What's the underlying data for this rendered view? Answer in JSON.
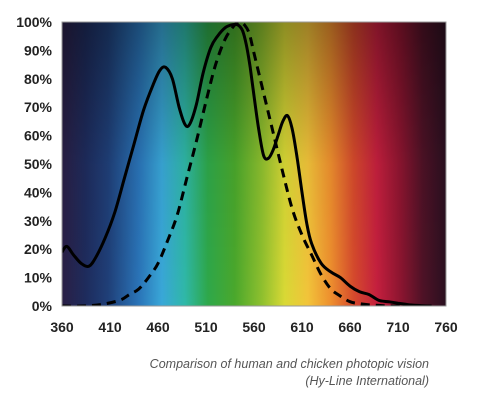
{
  "chart_data": {
    "type": "line",
    "title": "",
    "xlabel": "",
    "ylabel": "",
    "xlim": [
      360,
      760
    ],
    "ylim": [
      0,
      100
    ],
    "x_ticks": [
      "360",
      "410",
      "460",
      "510",
      "560",
      "610",
      "660",
      "710",
      "760"
    ],
    "y_ticks": [
      "0%",
      "10%",
      "20%",
      "30%",
      "40%",
      "50%",
      "60%",
      "70%",
      "80%",
      "90%",
      "100%"
    ],
    "grid": false,
    "legend": "none",
    "background": "visible-spectrum gradient",
    "series": [
      {
        "style": "solid",
        "color": "#000000",
        "x": [
          360,
          365,
          372,
          380,
          388,
          395,
          405,
          415,
          425,
          435,
          445,
          455,
          462,
          468,
          475,
          482,
          488,
          493,
          500,
          507,
          515,
          522,
          530,
          537,
          543,
          548,
          552,
          556,
          560,
          565,
          570,
          575,
          580,
          585,
          590,
          595,
          600,
          605,
          610,
          615,
          620,
          630,
          640,
          650,
          660,
          670,
          680,
          690,
          700,
          710,
          720,
          730,
          740,
          745
        ],
        "y": [
          19,
          21,
          18,
          15,
          14,
          17,
          24,
          33,
          45,
          57,
          69,
          78,
          83,
          84,
          80,
          70,
          64,
          64,
          71,
          82,
          91,
          95,
          98,
          99,
          99,
          97,
          92,
          84,
          74,
          62,
          53,
          52,
          55,
          60,
          65,
          67,
          62,
          52,
          40,
          29,
          22,
          15,
          12,
          10,
          7,
          5,
          4,
          2,
          1.5,
          1,
          0.5,
          0.2,
          0,
          0
        ]
      },
      {
        "style": "dashed",
        "color": "#000000",
        "x": [
          360,
          380,
          400,
          420,
          430,
          440,
          450,
          460,
          470,
          480,
          490,
          500,
          510,
          520,
          530,
          540,
          545,
          550,
          555,
          560,
          570,
          580,
          590,
          600,
          610,
          620,
          630,
          640,
          650,
          660,
          670,
          680,
          690,
          700,
          720
        ],
        "y": [
          0,
          0,
          0.5,
          2,
          4,
          6,
          10,
          15,
          23,
          32,
          45,
          58,
          72,
          85,
          94,
          99,
          100,
          99,
          96,
          89,
          75,
          61,
          47,
          34,
          25,
          18,
          11,
          6,
          3.5,
          1.5,
          0.8,
          0.4,
          0.2,
          0,
          0
        ]
      }
    ]
  },
  "caption": {
    "line1": "Comparison of human and chicken photopic vision",
    "line2": "(Hy-Line International)"
  }
}
